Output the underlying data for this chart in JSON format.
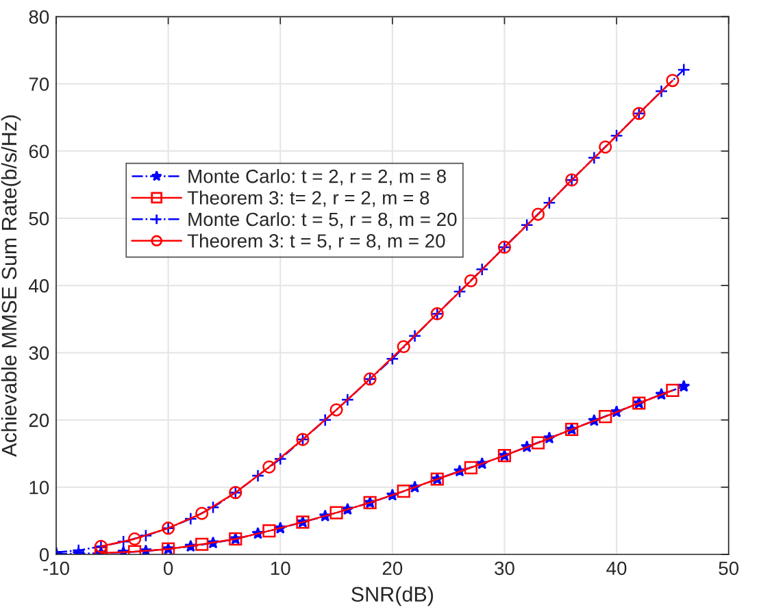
{
  "chart_data": {
    "type": "line",
    "xlabel": "SNR(dB)",
    "ylabel": "Achievable MMSE Sum Rate(b/s/Hz)",
    "xlim": [
      -10,
      50
    ],
    "xticks": [
      -10,
      0,
      10,
      20,
      30,
      40,
      50
    ],
    "ylim": [
      0,
      80
    ],
    "yticks": [
      0,
      10,
      20,
      30,
      40,
      50,
      60,
      70,
      80
    ],
    "grid": true,
    "legend": "left",
    "series": [
      {
        "name": "Monte Carlo: t = 2, r = 2, m = 8",
        "color": "#0000ff",
        "marker": "star",
        "line_style": "dashdot",
        "x": [
          -10,
          -8,
          -6,
          -4,
          -2,
          0,
          2,
          4,
          6,
          8,
          10,
          12,
          14,
          16,
          18,
          20,
          22,
          24,
          26,
          28,
          30,
          32,
          34,
          36,
          38,
          40,
          42,
          44,
          46
        ],
        "values": [
          0.1,
          0.1,
          0.2,
          0.3,
          0.5,
          0.8,
          1.2,
          1.7,
          2.3,
          3.1,
          3.9,
          4.8,
          5.7,
          6.7,
          7.7,
          8.8,
          10.0,
          11.2,
          12.4,
          13.5,
          14.7,
          16.0,
          17.3,
          18.6,
          19.9,
          21.2,
          22.5,
          23.8,
          25.0
        ]
      },
      {
        "name": "Theorem 3: t= 2, r = 2, m = 8",
        "color": "#ff0000",
        "marker": "square",
        "line_style": "solid",
        "x": [
          -6,
          -3,
          0,
          3,
          6,
          9,
          12,
          15,
          18,
          21,
          24,
          27,
          30,
          33,
          36,
          39,
          42,
          45
        ],
        "values": [
          0.2,
          0.4,
          0.8,
          1.5,
          2.3,
          3.5,
          4.8,
          6.2,
          7.7,
          9.4,
          11.2,
          12.9,
          14.7,
          16.6,
          18.6,
          20.5,
          22.5,
          24.4
        ]
      },
      {
        "name": "Monte Carlo: t = 5, r = 8, m = 20",
        "color": "#0000ff",
        "marker": "cross",
        "line_style": "dashdot",
        "x": [
          -10,
          -8,
          -6,
          -4,
          -2,
          0,
          2,
          4,
          6,
          8,
          10,
          12,
          14,
          16,
          18,
          20,
          22,
          24,
          26,
          28,
          30,
          32,
          34,
          36,
          38,
          40,
          42,
          44,
          46
        ],
        "values": [
          0.3,
          0.6,
          1.2,
          1.9,
          2.8,
          3.9,
          5.3,
          7.0,
          9.2,
          11.7,
          14.2,
          17.1,
          20.0,
          23.0,
          26.1,
          29.1,
          32.5,
          35.8,
          39.1,
          42.4,
          45.7,
          49.0,
          52.3,
          55.7,
          59.0,
          62.3,
          65.6,
          68.9,
          72.1
        ]
      },
      {
        "name": "Theorem 3: t = 5, r = 8, m = 20",
        "color": "#ff0000",
        "marker": "circle",
        "line_style": "solid",
        "x": [
          -6,
          -3,
          0,
          3,
          6,
          9,
          12,
          15,
          18,
          21,
          24,
          27,
          30,
          33,
          36,
          39,
          42,
          45
        ],
        "values": [
          1.2,
          2.3,
          3.9,
          6.1,
          9.2,
          13.0,
          17.1,
          21.5,
          26.1,
          30.9,
          35.8,
          40.7,
          45.7,
          50.6,
          55.7,
          60.6,
          65.6,
          70.5
        ]
      }
    ]
  }
}
